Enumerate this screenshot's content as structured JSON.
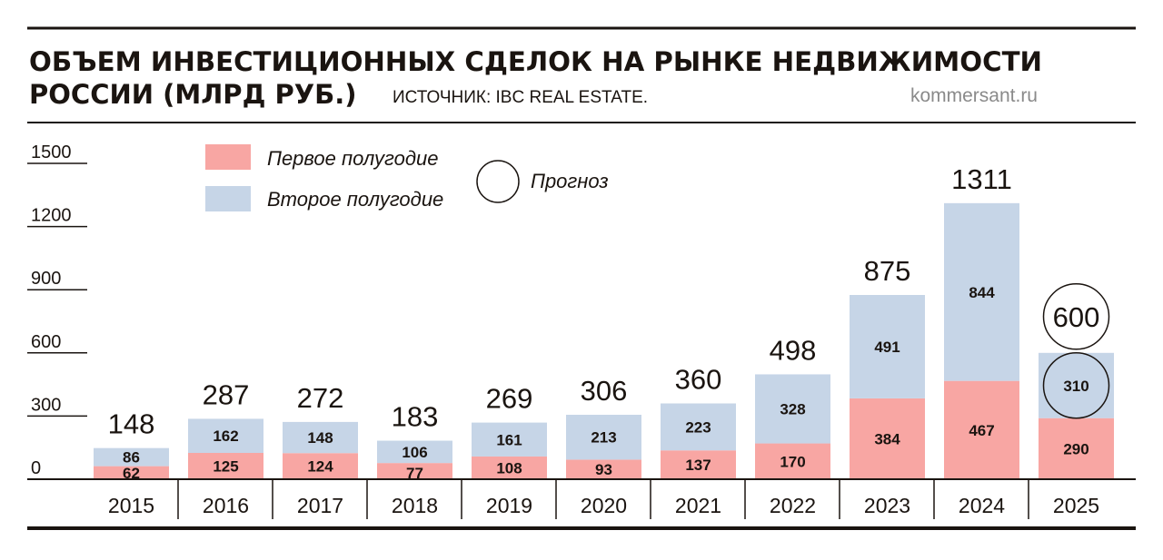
{
  "title_line1": "ОБЪЕМ ИНВЕСТИЦИОННЫХ СДЕЛОК НА РЫНКЕ НЕДВИЖИМОСТИ",
  "title_line2": "РОССИИ (МЛРД РУБ.)",
  "source": "ИСТОЧНИК: IBC REAL ESTATE.",
  "site": "kommersant.ru",
  "colors": {
    "first_half": "#f8a6a3",
    "second_half": "#c6d5e7",
    "ink": "#1a1410"
  },
  "chart_data": {
    "type": "bar",
    "stacked": true,
    "title": "ОБЪЕМ ИНВЕСТИЦИОННЫХ СДЕЛОК НА РЫНКЕ НЕДВИЖИМОСТИ РОССИИ (МЛРД РУБ.)",
    "xlabel": "",
    "ylabel": "млрд руб.",
    "ylim": [
      0,
      1500
    ],
    "yticks": [
      "0",
      "300",
      "600",
      "900",
      "1200",
      "1500"
    ],
    "categories": [
      "2015",
      "2016",
      "2017",
      "2018",
      "2019",
      "2020",
      "2021",
      "2022",
      "2023",
      "2024",
      "2025"
    ],
    "series": [
      {
        "name": "Первое полугодие",
        "values": [
          62,
          125,
          124,
          77,
          108,
          93,
          137,
          170,
          384,
          467,
          290
        ]
      },
      {
        "name": "Второе полугодие",
        "values": [
          86,
          162,
          148,
          106,
          161,
          213,
          223,
          328,
          491,
          844,
          310
        ]
      }
    ],
    "totals": [
      "148",
      "287",
      "272",
      "183",
      "269",
      "306",
      "360",
      "498",
      "875",
      "1311",
      "600"
    ],
    "forecast_legend": "Прогноз",
    "forecast_category": "2025",
    "legend_position": "top-left"
  }
}
